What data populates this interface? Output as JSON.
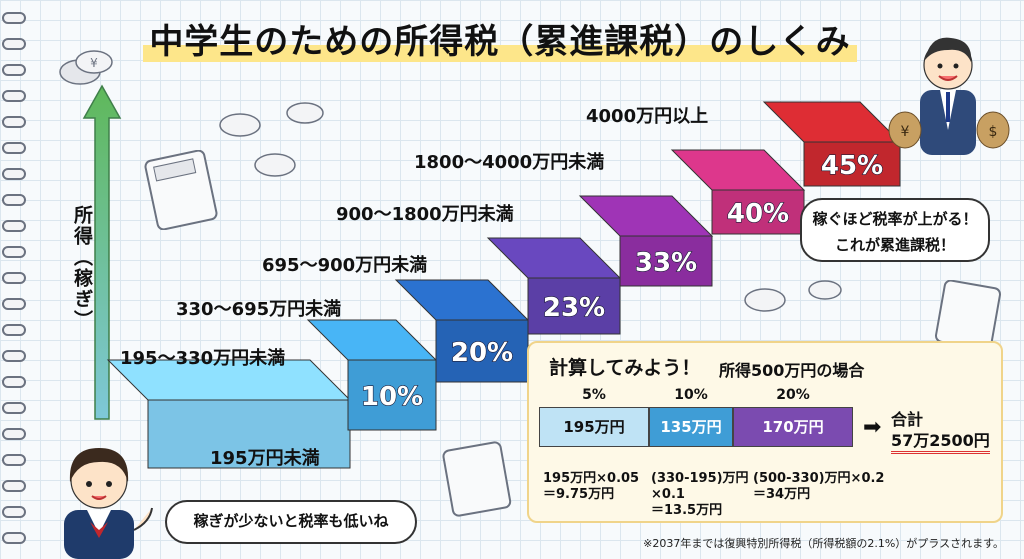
{
  "title": "中学生のための所得税（累進課税）のしくみ",
  "axis_label": "所得（稼ぎ）",
  "steps": [
    {
      "label": "195万円未満",
      "rate": "",
      "color": "#7cc4e6"
    },
    {
      "label": "195～330万円未満",
      "rate": "10%",
      "color": "#3f9dd6"
    },
    {
      "label": "330～695万円未満",
      "rate": "20%",
      "color": "#2563b5"
    },
    {
      "label": "695～900万円未満",
      "rate": "23%",
      "color": "#5b3fa6"
    },
    {
      "label": "900～1800万円未満",
      "rate": "33%",
      "color": "#8a2d9e"
    },
    {
      "label": "1800～4000万円未満",
      "rate": "40%",
      "color": "#c0307a"
    },
    {
      "label": "4000万円以上",
      "rate": "45%",
      "color": "#c1272d"
    }
  ],
  "bubble_right": {
    "line1": "稼ぐほど税率が上がる！",
    "line2": "これが累進課税！"
  },
  "bubble_left": "稼ぎが少ないと税率も低いね",
  "calc": {
    "title": "計算してみよう！",
    "subtitle": "所得500万円の場合",
    "segments": [
      {
        "rate": "5%",
        "amount": "195万円",
        "formula_lines": [
          "195万円×0.05",
          "＝9.75万円"
        ],
        "color": "#bfe3f5"
      },
      {
        "rate": "10%",
        "amount": "135万円",
        "formula_lines": [
          "(330-195)万円",
          "×0.1",
          "＝13.5万円"
        ],
        "color": "#3f9dd6"
      },
      {
        "rate": "20%",
        "amount": "170万円",
        "formula_lines": [
          "(500-330)万円×0.2",
          "＝34万円"
        ],
        "color": "#7b4bb0"
      }
    ],
    "total_label": "合計",
    "total_value": "57万2500円"
  },
  "footnote": "※2037年までは復興特別所得税（所得税額の2.1%）がプラスされます。"
}
